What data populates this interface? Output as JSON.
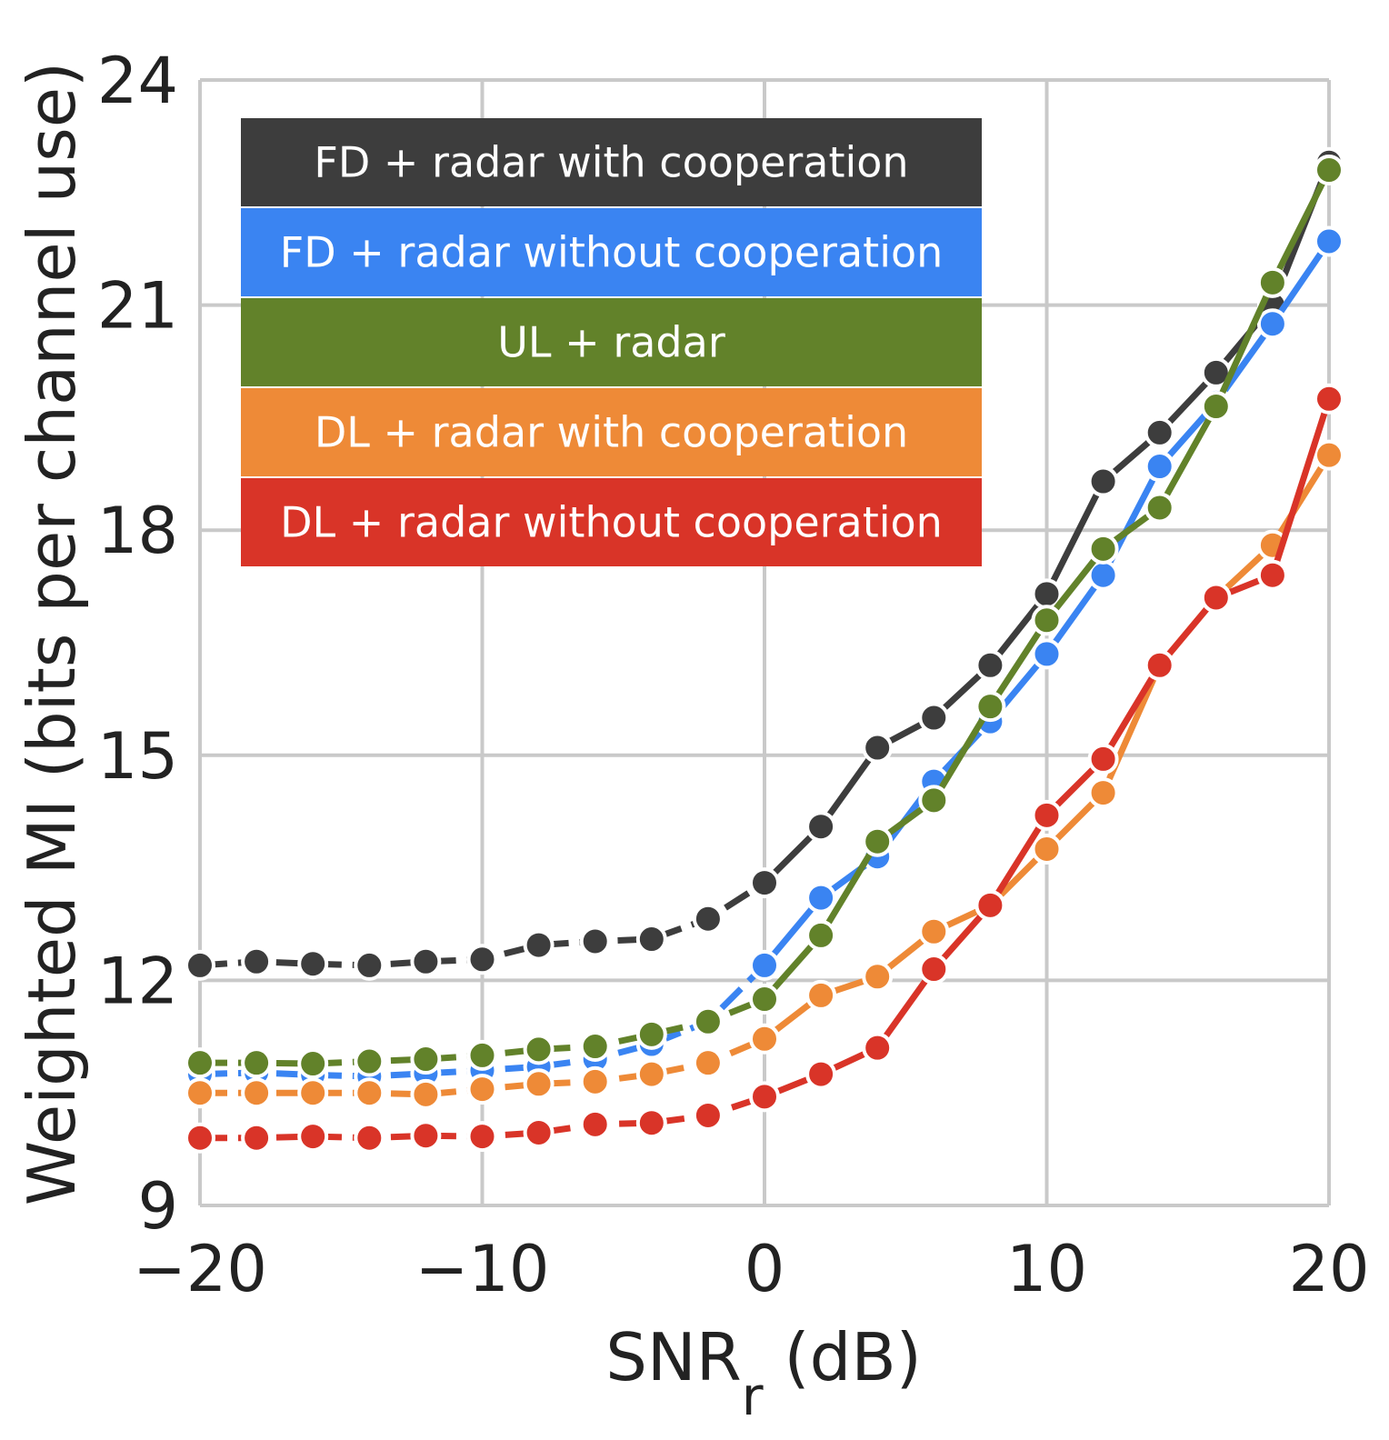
{
  "chart_data": {
    "type": "line",
    "title": "",
    "xlabel": "SNR",
    "xlabel_subscript": "r",
    "xlabel_unit": "(dB)",
    "ylabel": "Weighted MI (bits per channel use)",
    "xlim": [
      -20,
      20
    ],
    "ylim": [
      9,
      24
    ],
    "xticks": [
      -20,
      -10,
      0,
      10,
      20
    ],
    "yticks": [
      9,
      12,
      15,
      18,
      21,
      24
    ],
    "xtick_labels": [
      "−20",
      "−10",
      "0",
      "10",
      "20"
    ],
    "ytick_labels": [
      "9",
      "12",
      "15",
      "18",
      "21",
      "24"
    ],
    "grid": true,
    "legend_position": "top-left",
    "x": [
      -20,
      -18,
      -16,
      -14,
      -12,
      -10,
      -8,
      -6,
      -4,
      -2,
      0,
      2,
      4,
      6,
      8,
      10,
      12,
      14,
      16,
      18,
      20
    ],
    "series": [
      {
        "name": "FD + radar with cooperation",
        "color": "#3d3d3d",
        "values": [
          12.2,
          12.25,
          12.22,
          12.2,
          12.25,
          12.28,
          12.47,
          12.52,
          12.55,
          12.82,
          13.3,
          14.05,
          15.1,
          15.5,
          16.2,
          17.15,
          18.65,
          19.3,
          20.1,
          21.0,
          22.9
        ]
      },
      {
        "name": "FD + radar without cooperation",
        "color": "#3a84f2",
        "values": [
          10.75,
          10.77,
          10.74,
          10.72,
          10.76,
          10.8,
          10.85,
          10.95,
          11.15,
          11.45,
          12.2,
          13.1,
          13.65,
          14.65,
          15.45,
          16.35,
          17.4,
          18.85,
          19.7,
          20.75,
          21.85
        ]
      },
      {
        "name": "UL + radar",
        "color": "#62822a",
        "values": [
          10.9,
          10.9,
          10.89,
          10.92,
          10.95,
          11.0,
          11.08,
          11.12,
          11.28,
          11.45,
          11.75,
          12.6,
          13.85,
          14.4,
          15.65,
          16.8,
          17.75,
          18.3,
          19.65,
          21.3,
          22.8
        ]
      },
      {
        "name": "DL + radar with cooperation",
        "color": "#ee8a37",
        "values": [
          10.5,
          10.5,
          10.5,
          10.5,
          10.48,
          10.55,
          10.62,
          10.65,
          10.75,
          10.9,
          11.22,
          11.8,
          12.05,
          12.65,
          13.0,
          13.75,
          14.5,
          16.2,
          17.1,
          17.8,
          19.0
        ]
      },
      {
        "name": "DL + radar without cooperation",
        "color": "#d93428",
        "values": [
          9.9,
          9.9,
          9.92,
          9.9,
          9.93,
          9.92,
          9.97,
          10.08,
          10.1,
          10.2,
          10.45,
          10.75,
          11.1,
          12.15,
          13.0,
          14.2,
          14.95,
          16.2,
          17.1,
          17.4,
          19.75
        ]
      }
    ]
  }
}
